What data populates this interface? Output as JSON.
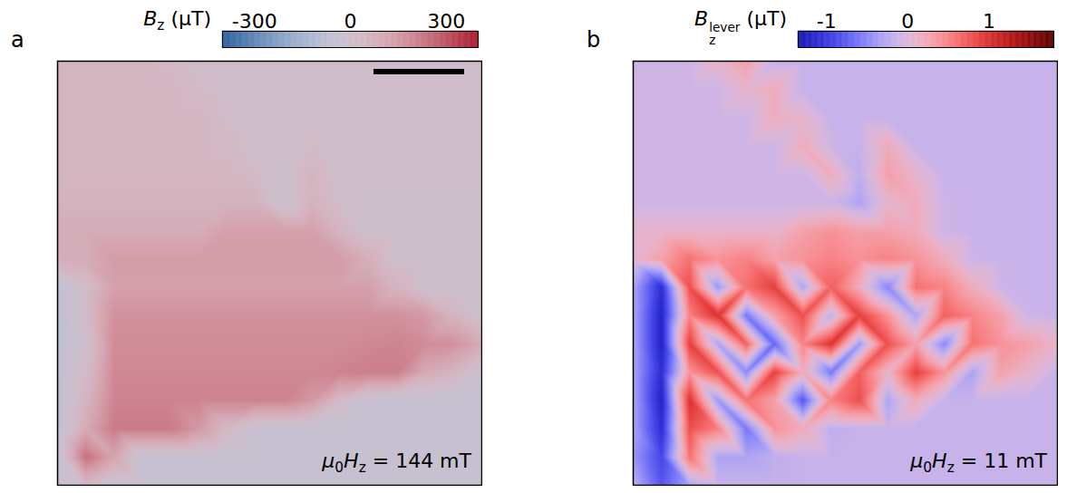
{
  "chart_data": [
    {
      "type": "heatmap",
      "label": "a",
      "colorbar_label": [
        {
          "text": "B",
          "style": "italic"
        },
        {
          "text": "z",
          "style": "sub"
        },
        {
          "text": " (μT)"
        }
      ],
      "clim": [
        -400,
        400
      ],
      "cticks": [
        -300,
        0,
        300
      ],
      "colors": [
        "#2c5f9e",
        "#ffffff",
        "#a8192e"
      ],
      "annotation": [
        {
          "text": "μ",
          "style": "italic"
        },
        {
          "text": "0",
          "style": "sub"
        },
        {
          "text": "H",
          "style": "italic"
        },
        {
          "text": "z",
          "style": "sub"
        },
        {
          "text": " = 144 mT"
        }
      ],
      "cells": [
        [
          60,
          60,
          60,
          60,
          40,
          10,
          10,
          10,
          10,
          10,
          10,
          10,
          10,
          10,
          10,
          10
        ],
        [
          60,
          60,
          60,
          60,
          60,
          30,
          10,
          10,
          10,
          10,
          10,
          10,
          10,
          10,
          10,
          10
        ],
        [
          60,
          60,
          60,
          60,
          60,
          60,
          20,
          10,
          10,
          10,
          10,
          10,
          10,
          10,
          10,
          10
        ],
        [
          60,
          60,
          60,
          60,
          60,
          60,
          40,
          5,
          5,
          30,
          10,
          10,
          10,
          10,
          10,
          10
        ],
        [
          60,
          60,
          60,
          60,
          60,
          60,
          60,
          30,
          0,
          60,
          5,
          5,
          5,
          5,
          5,
          5
        ],
        [
          70,
          70,
          70,
          70,
          70,
          70,
          70,
          70,
          -20,
          70,
          15,
          0,
          0,
          0,
          0,
          0
        ],
        [
          90,
          90,
          90,
          90,
          90,
          90,
          130,
          130,
          130,
          130,
          60,
          0,
          0,
          0,
          0,
          0
        ],
        [
          80,
          90,
          140,
          140,
          140,
          140,
          140,
          140,
          140,
          140,
          140,
          80,
          0,
          0,
          0,
          0
        ],
        [
          -60,
          20,
          130,
          130,
          130,
          130,
          130,
          130,
          130,
          130,
          130,
          130,
          60,
          0,
          0,
          0
        ],
        [
          -70,
          20,
          170,
          170,
          170,
          170,
          170,
          170,
          170,
          170,
          170,
          170,
          170,
          150,
          60,
          0
        ],
        [
          -70,
          0,
          180,
          180,
          180,
          180,
          180,
          180,
          180,
          180,
          180,
          190,
          200,
          180,
          170,
          100
        ],
        [
          -70,
          30,
          190,
          190,
          190,
          190,
          190,
          190,
          190,
          190,
          200,
          210,
          210,
          100,
          60,
          -20
        ],
        [
          -70,
          60,
          200,
          200,
          200,
          200,
          200,
          200,
          200,
          150,
          40,
          -40,
          -40,
          -40,
          -40,
          -40
        ],
        [
          -70,
          100,
          220,
          220,
          220,
          150,
          40,
          -40,
          -40,
          -40,
          -40,
          -40,
          -40,
          -40,
          -40,
          -40
        ],
        [
          -50,
          240,
          120,
          -40,
          -40,
          -40,
          -40,
          -40,
          -40,
          -40,
          -40,
          -40,
          -40,
          -40,
          -40,
          -40
        ],
        [
          -40,
          40,
          -40,
          -40,
          -40,
          -40,
          -40,
          -40,
          -40,
          -40,
          -40,
          -40,
          -40,
          -40,
          -40,
          -40
        ]
      ]
    },
    {
      "type": "heatmap",
      "label": "b",
      "colorbar_label": [
        {
          "text": "B",
          "style": "italic"
        },
        {
          "text": "z",
          "style": "subsup",
          "sup": "lever"
        },
        {
          "text": " (μT)"
        }
      ],
      "clim": [
        -1.35,
        1.8
      ],
      "cticks": [
        -1,
        0,
        1
      ],
      "colors": [
        "#00006e",
        "#2a2aff",
        "#ffffff",
        "#ff2020",
        "#5a0000"
      ],
      "annotation": [
        {
          "text": "μ",
          "style": "italic"
        },
        {
          "text": "0",
          "style": "sub"
        },
        {
          "text": "H",
          "style": "italic"
        },
        {
          "text": "z",
          "style": "sub"
        },
        {
          "text": " = 11 mT"
        }
      ],
      "cells": [
        [
          -0.1,
          -0.1,
          -0.1,
          0.1,
          0.3,
          -0.15,
          -0.15,
          -0.15,
          -0.15,
          -0.15,
          -0.15,
          -0.15,
          -0.15,
          -0.15,
          -0.15,
          -0.15
        ],
        [
          -0.1,
          -0.1,
          -0.1,
          -0.1,
          0.1,
          0.2,
          -0.15,
          -0.15,
          -0.15,
          -0.15,
          -0.15,
          -0.15,
          -0.15,
          -0.15,
          -0.15,
          -0.15
        ],
        [
          -0.1,
          -0.1,
          -0.1,
          -0.1,
          -0.1,
          0.2,
          0.1,
          -0.15,
          -0.15,
          -0.15,
          -0.15,
          -0.15,
          -0.15,
          -0.15,
          -0.15,
          -0.15
        ],
        [
          -0.1,
          -0.1,
          -0.1,
          -0.1,
          -0.1,
          -0.1,
          0.2,
          -0.1,
          -0.15,
          0.2,
          -0.15,
          -0.15,
          -0.15,
          -0.15,
          -0.15,
          -0.15
        ],
        [
          -0.1,
          -0.1,
          -0.1,
          -0.1,
          -0.1,
          -0.1,
          -0.1,
          0.2,
          -0.2,
          0.3,
          0.1,
          -0.15,
          -0.15,
          -0.15,
          -0.15,
          -0.15
        ],
        [
          -0.1,
          -0.1,
          -0.1,
          -0.1,
          -0.1,
          -0.1,
          -0.1,
          -0.1,
          -0.3,
          0.1,
          0.2,
          -0.1,
          -0.15,
          -0.15,
          -0.15,
          -0.15
        ],
        [
          0.1,
          0.1,
          0.1,
          0.1,
          0.1,
          0.1,
          0.3,
          0.4,
          0.3,
          0.3,
          0.2,
          -0.1,
          -0.15,
          -0.15,
          -0.15,
          -0.15
        ],
        [
          0.1,
          0.3,
          0.6,
          0.4,
          0.5,
          0.3,
          0.4,
          0.5,
          0.4,
          0.5,
          0.4,
          0.2,
          -0.1,
          -0.15,
          -0.15,
          -0.15
        ],
        [
          -0.3,
          -1.1,
          0.8,
          -0.4,
          0.6,
          0.9,
          -0.3,
          0.7,
          0.2,
          -0.5,
          0.6,
          0.5,
          0.2,
          -0.1,
          -0.15,
          -0.15
        ],
        [
          -0.3,
          -1.2,
          0.5,
          1.0,
          -0.6,
          0.3,
          0.8,
          -0.2,
          0.9,
          0.4,
          -0.3,
          0.7,
          0.5,
          0.3,
          -0.1,
          -0.15
        ],
        [
          -0.3,
          -1.2,
          0.9,
          -0.3,
          0.7,
          -0.7,
          0.5,
          1.0,
          -0.4,
          0.8,
          0.3,
          -0.5,
          0.6,
          0.4,
          0.3,
          0.1
        ],
        [
          -0.3,
          -1.1,
          0.4,
          0.8,
          -0.5,
          0.9,
          0.2,
          -0.6,
          0.7,
          0.1,
          0.9,
          0.4,
          -0.3,
          0.3,
          0.1,
          -0.15
        ],
        [
          -0.3,
          -1.2,
          1.0,
          -0.4,
          0.6,
          0.3,
          -0.8,
          0.5,
          0.8,
          -0.3,
          0.2,
          -0.15,
          -0.15,
          -0.15,
          -0.15,
          -0.15
        ],
        [
          -0.3,
          -1.1,
          0.8,
          0.5,
          -0.6,
          0.4,
          0.2,
          -0.2,
          -0.15,
          -0.15,
          -0.15,
          -0.15,
          -0.15,
          -0.15,
          -0.15,
          -0.15
        ],
        [
          -0.4,
          -0.9,
          0.6,
          -0.3,
          -0.3,
          -0.2,
          -0.15,
          -0.15,
          -0.15,
          -0.15,
          -0.15,
          -0.15,
          -0.15,
          -0.15,
          -0.15,
          -0.15
        ],
        [
          -0.2,
          -0.8,
          -0.3,
          -0.15,
          -0.15,
          -0.15,
          -0.15,
          -0.15,
          -0.15,
          -0.15,
          -0.15,
          -0.15,
          -0.15,
          -0.15,
          -0.15,
          -0.15
        ]
      ]
    }
  ]
}
